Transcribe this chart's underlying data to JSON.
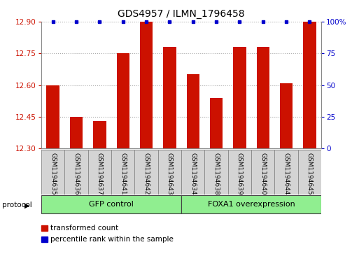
{
  "title": "GDS4957 / ILMN_1796458",
  "samples": [
    "GSM1194635",
    "GSM1194636",
    "GSM1194637",
    "GSM1194641",
    "GSM1194642",
    "GSM1194643",
    "GSM1194634",
    "GSM1194638",
    "GSM1194639",
    "GSM1194640",
    "GSM1194644",
    "GSM1194645"
  ],
  "transformed_counts": [
    12.6,
    12.45,
    12.43,
    12.75,
    12.9,
    12.78,
    12.65,
    12.54,
    12.78,
    12.78,
    12.61,
    12.9
  ],
  "percentile_ranks": [
    100,
    100,
    100,
    100,
    100,
    100,
    100,
    100,
    100,
    100,
    100,
    100
  ],
  "ylim_left": [
    12.3,
    12.9
  ],
  "ylim_right": [
    0,
    100
  ],
  "yticks_left": [
    12.3,
    12.45,
    12.6,
    12.75,
    12.9
  ],
  "yticks_right": [
    0,
    25,
    50,
    75,
    100
  ],
  "bar_color": "#cc1100",
  "dot_color": "#0000cc",
  "group1_label": "GFP control",
  "group2_label": "FOXA1 overexpression",
  "group1_indices": [
    0,
    1,
    2,
    3,
    4,
    5
  ],
  "group2_indices": [
    6,
    7,
    8,
    9,
    10,
    11
  ],
  "group_color": "#90ee90",
  "protocol_label": "protocol",
  "legend_bar_label": "transformed count",
  "legend_dot_label": "percentile rank within the sample",
  "grid_color": "#aaaaaa",
  "title_fontsize": 10,
  "tick_fontsize": 7.5,
  "label_fontsize": 6.5,
  "bar_width": 0.55,
  "bg_color": "#ffffff",
  "sample_box_color": "#d4d4d4",
  "sample_box_edge": "#888888"
}
